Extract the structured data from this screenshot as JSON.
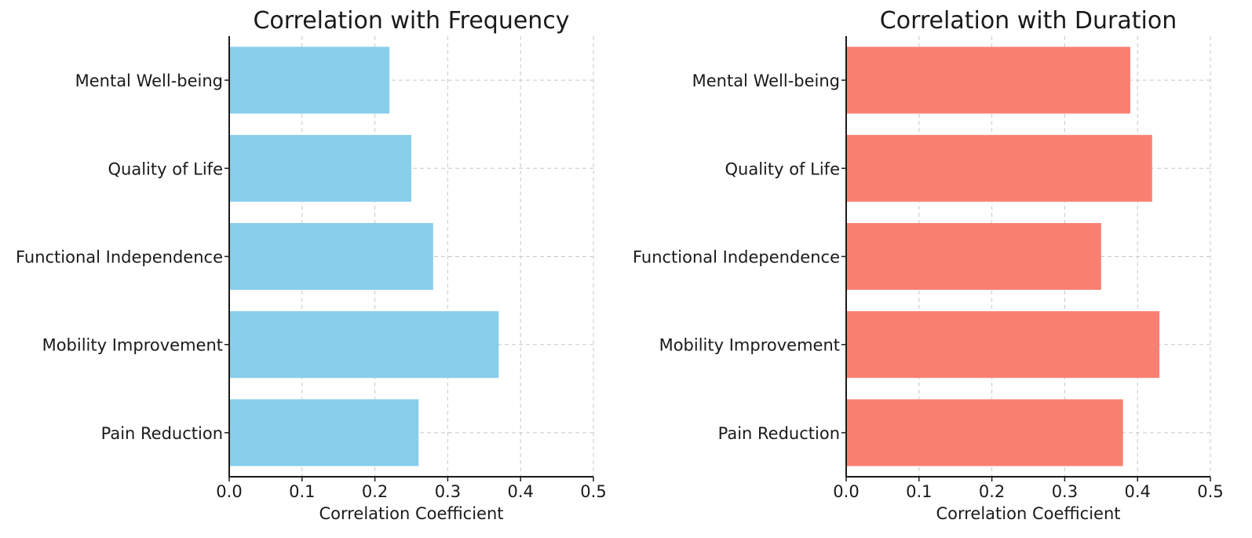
{
  "chart_data": [
    {
      "type": "bar",
      "orientation": "horizontal",
      "title": "Correlation with Frequency",
      "xlabel": "Correlation Coefficient",
      "ylabel": "",
      "categories": [
        "Pain Reduction",
        "Mobility Improvement",
        "Functional Independence",
        "Quality of Life",
        "Mental Well-being"
      ],
      "values": [
        0.26,
        0.37,
        0.28,
        0.25,
        0.22
      ],
      "xlim": [
        0.0,
        0.5
      ],
      "xticks": [
        "0.0",
        "0.1",
        "0.2",
        "0.3",
        "0.4",
        "0.5"
      ],
      "grid": true,
      "color": "#87CEEB"
    },
    {
      "type": "bar",
      "orientation": "horizontal",
      "title": "Correlation with Duration",
      "xlabel": "Correlation Coefficient",
      "ylabel": "",
      "categories": [
        "Pain Reduction",
        "Mobility Improvement",
        "Functional Independence",
        "Quality of Life",
        "Mental Well-being"
      ],
      "values": [
        0.38,
        0.43,
        0.35,
        0.42,
        0.39
      ],
      "xlim": [
        0.0,
        0.5
      ],
      "xticks": [
        "0.0",
        "0.1",
        "0.2",
        "0.3",
        "0.4",
        "0.5"
      ],
      "grid": true,
      "color": "#FA8072"
    }
  ]
}
